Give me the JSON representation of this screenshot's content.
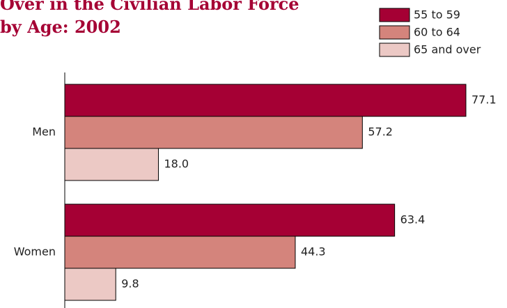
{
  "chart_data": {
    "type": "bar",
    "orientation": "horizontal",
    "title": [
      "Over in the Civilian Labor Force",
      "by Age:  2002"
    ],
    "categories": [
      "Men",
      "Women"
    ],
    "series": [
      {
        "name": "55 to 59",
        "color": "#a50034",
        "values": [
          77.1,
          63.4
        ],
        "value_labels": [
          "77.1",
          "63.4"
        ]
      },
      {
        "name": "60 to 64",
        "color": "#d4847c",
        "values": [
          57.2,
          44.3
        ],
        "value_labels": [
          "57.2",
          "44.3"
        ]
      },
      {
        "name": "65 and over",
        "color": "#ecc9c5",
        "values": [
          18,
          9.8
        ],
        "value_labels": [
          "18.0",
          "9.8"
        ]
      }
    ],
    "legend": "top-right"
  }
}
